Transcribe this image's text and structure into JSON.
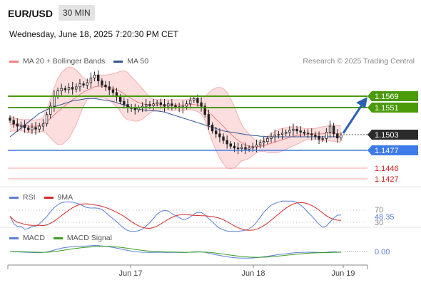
{
  "header": {
    "symbol": "EUR/USD",
    "interval": "30 MIN",
    "datetime": "Wednesday, June 18, 2025 7:20:30 PM CET",
    "credit": "Research © 2025 Trading Central"
  },
  "legends": {
    "price": [
      {
        "name": "MA 20 + Bollinger Bands",
        "color": "#f08080"
      },
      {
        "name": "MA 50",
        "color": "#2f5596"
      }
    ],
    "rsi": [
      {
        "name": "RSI",
        "color": "#5b7fd6"
      },
      {
        "name": "9MA",
        "color": "#d62728"
      }
    ],
    "macd": [
      {
        "name": "MACD",
        "color": "#5b7fd6"
      },
      {
        "name": "MACD Signal",
        "color": "#3a9e1f"
      }
    ]
  },
  "colors": {
    "resistance": "#4a9a0a",
    "support": "#3d7be8",
    "target": "#e06060",
    "current": "#2b2b2b",
    "arrow": "#2a62b3"
  },
  "chart_data": {
    "type": "candlestick",
    "x_ticks": [
      "Jun 17",
      "Jun 18",
      "Jun 19"
    ],
    "price_ylim": [
      1.1418,
      1.1648
    ],
    "levels": {
      "resistance": [
        "1.1569",
        "1.1551"
      ],
      "current": "1.1503",
      "support": "1.1477",
      "targets": [
        "1.1446",
        "1.1427"
      ]
    },
    "close": [
      1.1528,
      1.1522,
      1.1518,
      1.152,
      1.1515,
      1.1512,
      1.1516,
      1.1513,
      1.1518,
      1.1522,
      1.1538,
      1.1552,
      1.157,
      1.1578,
      1.1582,
      1.158,
      1.1584,
      1.1581,
      1.1585,
      1.159,
      1.1588,
      1.1592,
      1.16,
      1.1605,
      1.1595,
      1.1588,
      1.1585,
      1.158,
      1.1575,
      1.1568,
      1.156,
      1.1555,
      1.155,
      1.1548,
      1.1546,
      1.1549,
      1.1552,
      1.1555,
      1.1553,
      1.1556,
      1.1558,
      1.1555,
      1.1552,
      1.1556,
      1.1553,
      1.1551,
      1.1549,
      1.1552,
      1.1556,
      1.1562,
      1.1565,
      1.1558,
      1.1552,
      1.1538,
      1.152,
      1.151,
      1.1505,
      1.15,
      1.1494,
      1.1488,
      1.1484,
      1.1481,
      1.148,
      1.1482,
      1.1479,
      1.1481,
      1.1483,
      1.1486,
      1.149,
      1.1492,
      1.1497,
      1.15,
      1.1503,
      1.1504,
      1.1506,
      1.1508,
      1.1511,
      1.1513,
      1.151,
      1.1508,
      1.1506,
      1.1505,
      1.1503,
      1.1501,
      1.1496,
      1.1497,
      1.1508,
      1.1518,
      1.1505,
      1.1498,
      1.1503
    ],
    "ma50": [
      1.15,
      1.1505,
      1.151,
      1.1515,
      1.152,
      1.1525,
      1.153,
      1.1535,
      1.154,
      1.1543,
      1.1546,
      1.1549,
      1.1551,
      1.1553,
      1.1555,
      1.1557,
      1.1559,
      1.1561,
      1.1562,
      1.1563,
      1.1564,
      1.1565,
      1.1565,
      1.1565,
      1.1564,
      1.1563,
      1.1562,
      1.1561,
      1.156,
      1.1558,
      1.1556,
      1.1554,
      1.1552,
      1.155,
      1.1548,
      1.1547,
      1.1546,
      1.1545,
      1.1545,
      1.1544,
      1.1544,
      1.1543,
      1.1542,
      1.154,
      1.1538,
      1.1536,
      1.1534,
      1.1532,
      1.153,
      1.1528,
      1.1526,
      1.1524,
      1.1522,
      1.152,
      1.1518,
      1.1516,
      1.1514,
      1.1512,
      1.151,
      1.1509,
      1.1508,
      1.1507,
      1.1506,
      1.1505,
      1.1504,
      1.1503,
      1.1502,
      1.1502,
      1.1501,
      1.1501,
      1.15,
      1.15,
      1.15,
      1.15,
      1.15,
      1.15,
      1.15,
      1.15,
      1.15,
      1.15,
      1.15,
      1.15,
      1.15,
      1.15,
      1.15,
      1.15,
      1.15,
      1.15,
      1.15,
      1.15,
      1.15
    ],
    "ma20": [
      1.1522,
      1.1521,
      1.152,
      1.152,
      1.1519,
      1.1518,
      1.1518,
      1.1518,
      1.1519,
      1.1521,
      1.1526,
      1.1531,
      1.1537,
      1.1543,
      1.1548,
      1.1553,
      1.1558,
      1.1563,
      1.1567,
      1.1572,
      1.1576,
      1.1579,
      1.1582,
      1.1585,
      1.1586,
      1.1586,
      1.1585,
      1.1584,
      1.1582,
      1.158,
      1.1577,
      1.1573,
      1.1569,
      1.1565,
      1.1561,
      1.1558,
      1.1556,
      1.1555,
      1.1554,
      1.1554,
      1.1554,
      1.1554,
      1.1554,
      1.1554,
      1.1554,
      1.1554,
      1.1554,
      1.1554,
      1.1554,
      1.1555,
      1.1555,
      1.1554,
      1.1552,
      1.1548,
      1.1542,
      1.1536,
      1.153,
      1.1524,
      1.1518,
      1.1511,
      1.1505,
      1.1499,
      1.1494,
      1.149,
      1.1486,
      1.1484,
      1.1483,
      1.1483,
      1.1484,
      1.1485,
      1.1487,
      1.1489,
      1.1491,
      1.1493,
      1.1495,
      1.1497,
      1.1499,
      1.1501,
      1.1502,
      1.1503,
      1.1504,
      1.1505,
      1.1505,
      1.1505,
      1.1505,
      1.1505,
      1.1506,
      1.1507,
      1.1506,
      1.1505,
      1.1505
    ],
    "rsi_levels": [
      "70",
      "30"
    ],
    "rsi_current": "48.35",
    "macd_current": "0.00"
  }
}
